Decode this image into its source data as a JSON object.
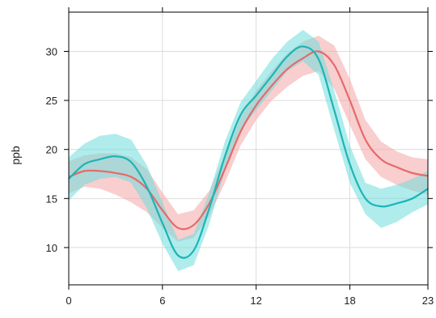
{
  "chart_data": {
    "type": "line",
    "ylabel": "ppb",
    "xlabel": "",
    "xlim": [
      0,
      23
    ],
    "ylim": [
      6.2,
      34.0
    ],
    "x_ticks": [
      0,
      6,
      12,
      18,
      23
    ],
    "y_ticks": [
      10,
      15,
      20,
      25,
      30
    ],
    "x_tick_labels": [
      "0",
      "6",
      "12",
      "18",
      "23"
    ],
    "y_tick_labels": [
      "10",
      "15",
      "20",
      "25",
      "30"
    ],
    "grid": true,
    "legend": "none",
    "x": [
      0,
      1,
      2,
      3,
      4,
      5,
      6,
      7,
      8,
      9,
      10,
      11,
      12,
      13,
      14,
      15,
      16,
      17,
      18,
      19,
      20,
      21,
      22,
      23
    ],
    "series": [
      {
        "color": "#e56a6a",
        "band_color": "#f4a6a6",
        "values": [
          17.2,
          17.8,
          17.8,
          17.6,
          17.2,
          16.0,
          13.8,
          12.0,
          12.3,
          14.5,
          18.0,
          21.8,
          24.5,
          26.5,
          28.2,
          29.3,
          30.0,
          28.6,
          25.0,
          21.0,
          19.0,
          18.2,
          17.6,
          17.3
        ],
        "lower": [
          15.5,
          16.2,
          16.0,
          15.4,
          14.6,
          13.6,
          12.0,
          10.6,
          11.0,
          13.2,
          16.6,
          20.4,
          23.0,
          25.0,
          26.4,
          27.5,
          28.0,
          26.2,
          22.5,
          19.0,
          17.2,
          16.4,
          15.8,
          15.4
        ],
        "upper": [
          18.8,
          19.4,
          19.6,
          19.6,
          19.2,
          18.0,
          15.6,
          13.4,
          13.8,
          15.8,
          19.4,
          23.2,
          26.0,
          28.0,
          29.8,
          31.0,
          31.6,
          30.6,
          27.2,
          23.0,
          20.8,
          19.8,
          19.2,
          19.0
        ]
      },
      {
        "color": "#1bb5b5",
        "band_color": "#6fdcdc",
        "values": [
          17.0,
          18.5,
          19.0,
          19.3,
          18.7,
          16.2,
          12.5,
          9.2,
          9.7,
          14.0,
          19.3,
          23.5,
          25.5,
          27.5,
          29.5,
          30.5,
          29.2,
          24.0,
          18.5,
          15.0,
          14.2,
          14.5,
          15.0,
          16.0
        ],
        "lower": [
          14.8,
          16.4,
          17.0,
          17.2,
          16.6,
          14.0,
          10.4,
          7.6,
          8.2,
          12.4,
          17.8,
          22.0,
          24.0,
          26.0,
          28.0,
          29.0,
          27.6,
          22.0,
          16.6,
          13.4,
          12.0,
          12.6,
          13.6,
          14.4
        ],
        "upper": [
          19.2,
          20.6,
          21.4,
          21.6,
          21.0,
          18.4,
          14.6,
          10.8,
          11.4,
          15.6,
          20.8,
          24.8,
          27.0,
          29.2,
          31.0,
          32.2,
          31.0,
          26.0,
          20.4,
          16.6,
          16.0,
          16.4,
          17.0,
          17.8
        ]
      }
    ]
  }
}
